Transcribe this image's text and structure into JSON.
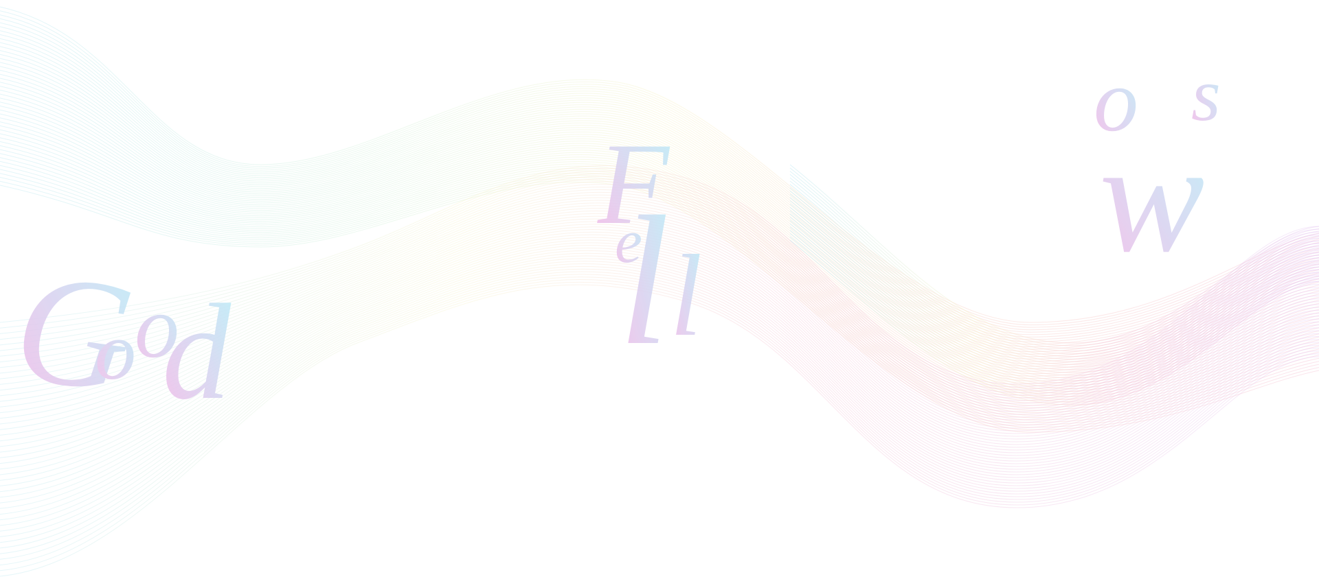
{
  "artwork": {
    "letters": [
      {
        "char": "G",
        "color_from": "#f4b8e8",
        "color_to": "#b8eef8"
      },
      {
        "char": "o",
        "color_from": "#f4b8e8",
        "color_to": "#b8eef8"
      },
      {
        "char": "o",
        "color_from": "#f4b8e8",
        "color_to": "#b8eef8"
      },
      {
        "char": "d",
        "color_from": "#f4b8e8",
        "color_to": "#b8eef8"
      },
      {
        "char": "F",
        "color_from": "#f4b8e8",
        "color_to": "#b8eef8"
      },
      {
        "char": "e",
        "color_from": "#f4b8e8",
        "color_to": "#b8eef8"
      },
      {
        "char": "l",
        "color_from": "#f4b8e8",
        "color_to": "#b8eef8"
      },
      {
        "char": "l",
        "color_from": "#f4b8e8",
        "color_to": "#b8eef8"
      },
      {
        "char": "o",
        "color_from": "#f4b8e8",
        "color_to": "#b8eef8"
      },
      {
        "char": "w",
        "color_from": "#f4b8e8",
        "color_to": "#b8eef8"
      },
      {
        "char": "s",
        "color_from": "#f4b8e8",
        "color_to": "#b8eef8"
      }
    ],
    "ribbon_colors": {
      "left": "#bfe9f2",
      "mid_green": "#d6f2da",
      "mid_yellow": "#f7f3c8",
      "peach": "#f9d2c4",
      "pink": "#f5c2d4",
      "purple": "#e5c8f2"
    }
  }
}
